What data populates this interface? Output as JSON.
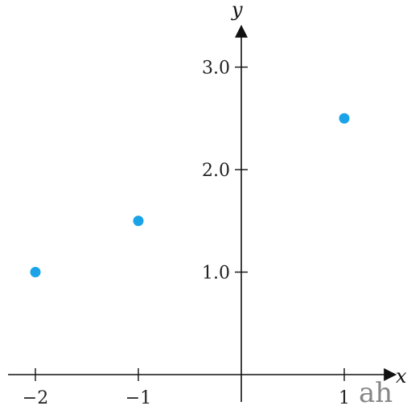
{
  "chart_data": {
    "type": "scatter",
    "title": "",
    "xlabel": "x",
    "ylabel": "y",
    "xlim": [
      -2.35,
      1.55
    ],
    "ylim": [
      0,
      3.35
    ],
    "x_ticks": [
      {
        "value": -2,
        "label": "−2"
      },
      {
        "value": -1,
        "label": "−1"
      },
      {
        "value": 1,
        "label": "1"
      }
    ],
    "y_ticks": [
      {
        "value": 1,
        "label": "1.0"
      },
      {
        "value": 2,
        "label": "2.0"
      },
      {
        "value": 3,
        "label": "3.0"
      }
    ],
    "grid": false,
    "series": [
      {
        "points": [
          {
            "x": -2,
            "y": 1.0
          },
          {
            "x": -1,
            "y": 1.5
          },
          {
            "x": 1,
            "y": 2.5
          }
        ]
      }
    ],
    "marker_color": "#1aa3e8",
    "axis_color": "#111111"
  },
  "watermark": {
    "text": "ah"
  }
}
